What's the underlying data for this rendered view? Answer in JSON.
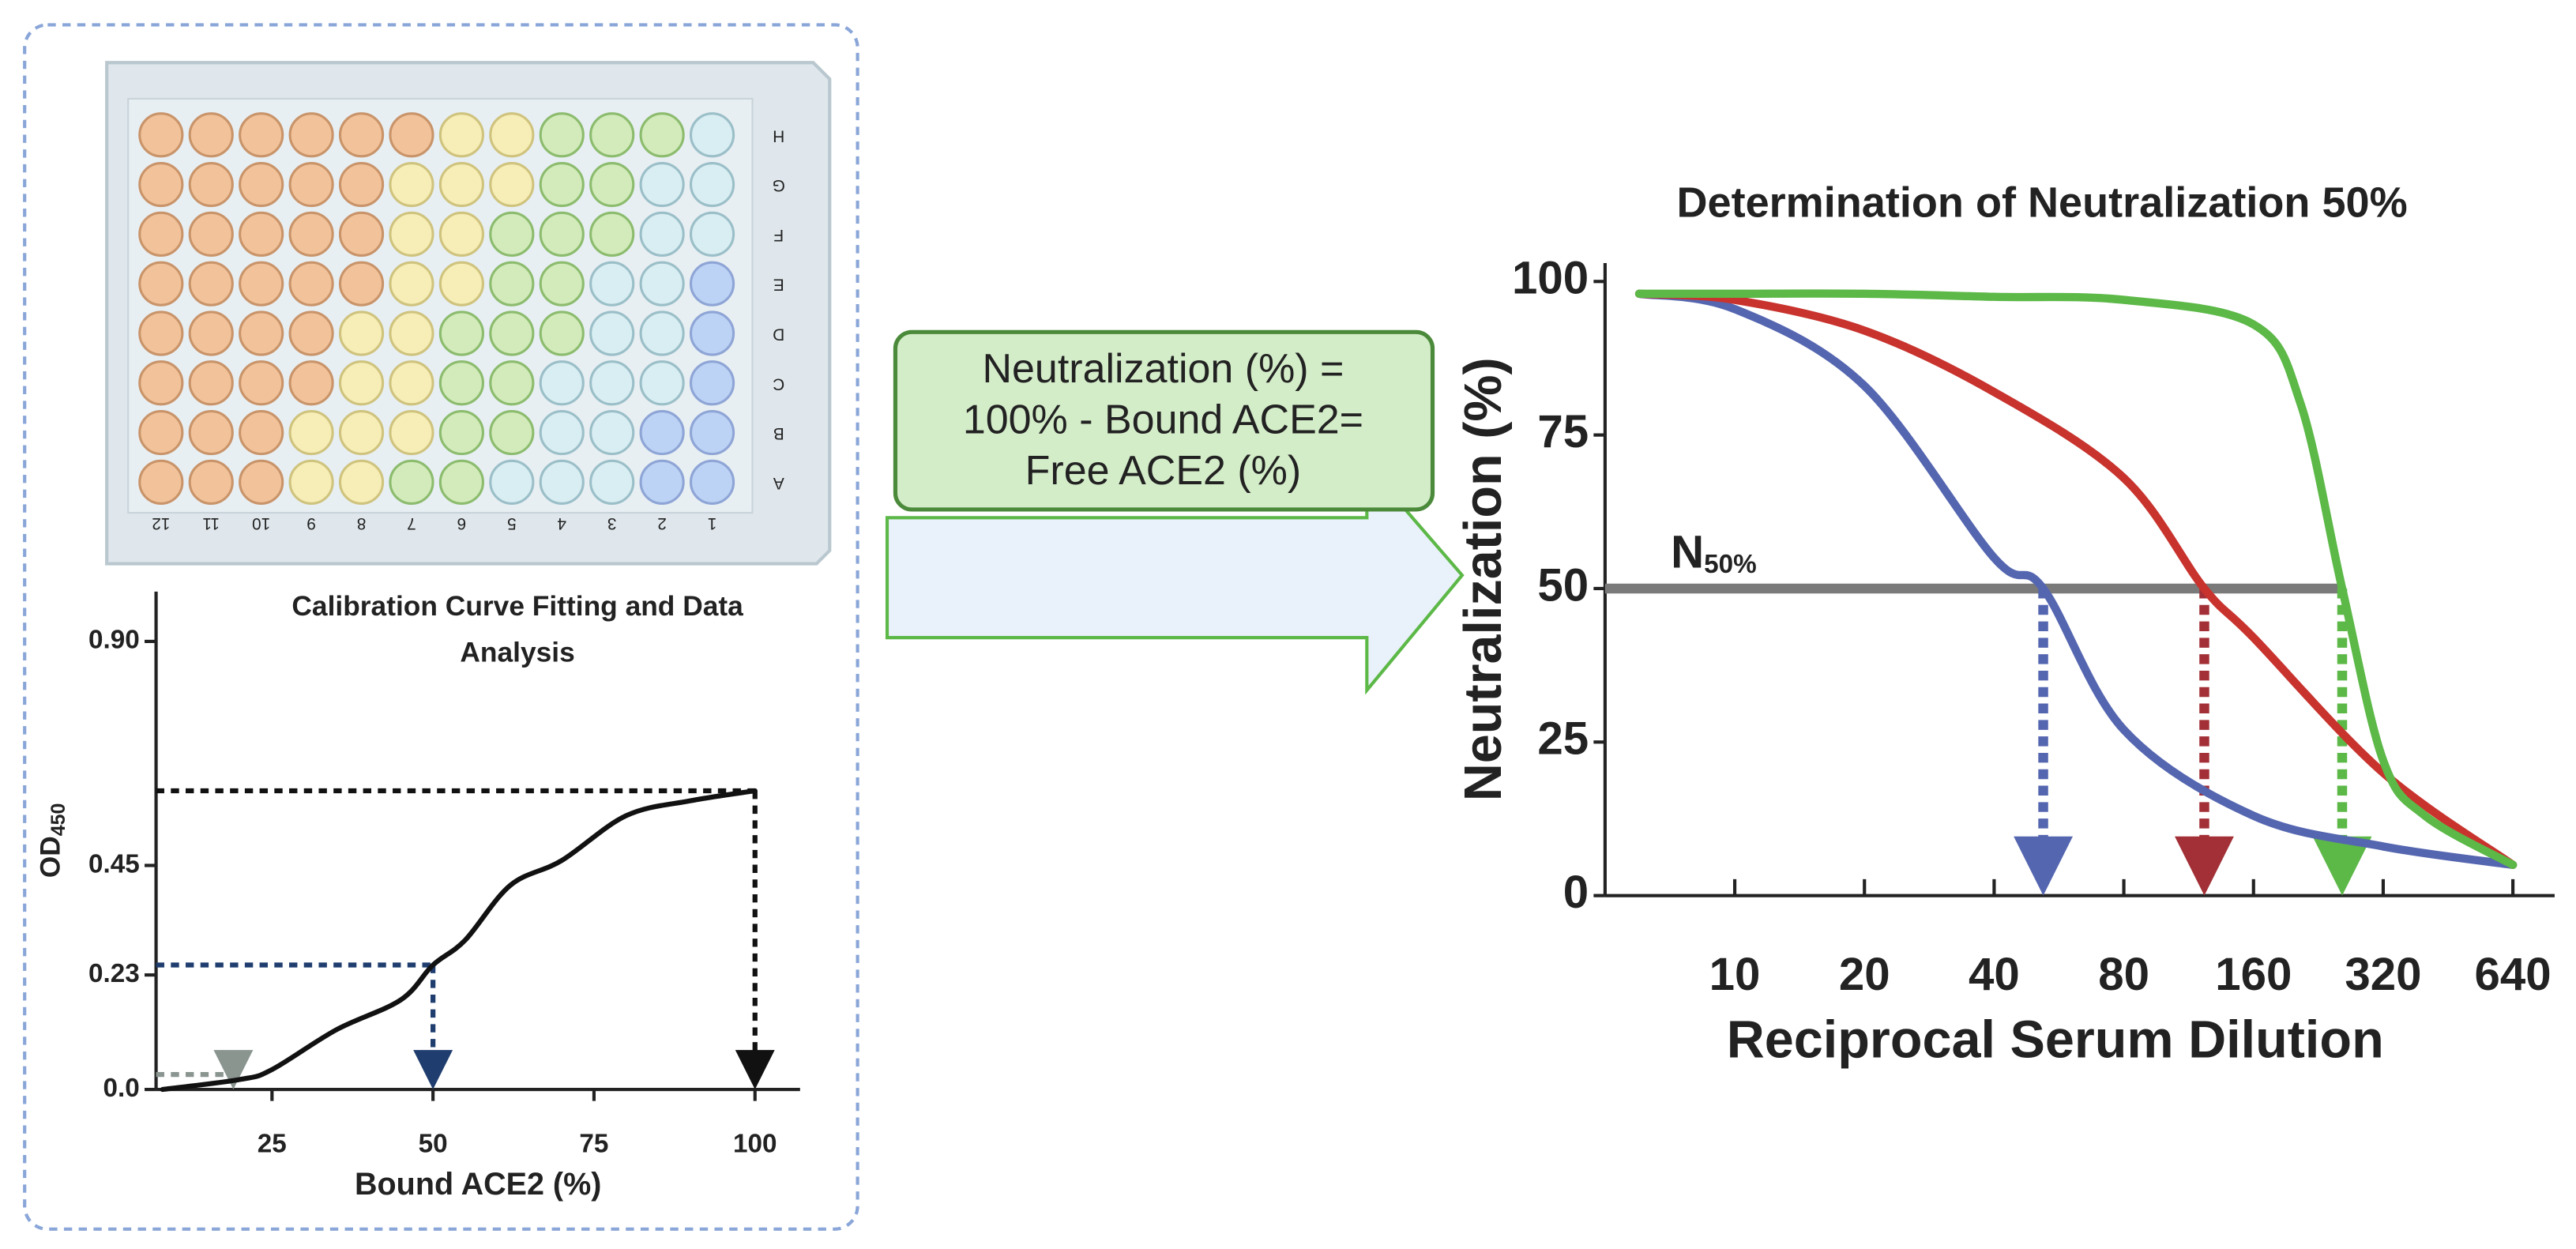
{
  "plate": {
    "rows": [
      "H",
      "G",
      "F",
      "E",
      "D",
      "C",
      "B",
      "A"
    ],
    "columns": [
      "12",
      "11",
      "10",
      "9",
      "8",
      "7",
      "6",
      "5",
      "4",
      "3",
      "2",
      "1"
    ]
  },
  "formula": [
    "Neutralization (%)   =",
    "100% - Bound ACE2=",
    "Free ACE2 (%)"
  ],
  "chart_data": [
    {
      "type": "line",
      "title": [
        "Calibration Curve Fitting and Data",
        "Analysis"
      ],
      "xlabel": "Bound ACE2 (%)",
      "ylabel": "OD",
      "ylabel_sub": "450",
      "x": [
        8,
        20,
        25,
        35,
        45,
        50,
        55,
        62,
        70,
        80,
        90,
        100
      ],
      "series": [
        {
          "color": "#111111",
          "values": [
            0.0,
            0.02,
            0.04,
            0.12,
            0.18,
            0.25,
            0.3,
            0.41,
            0.46,
            0.55,
            0.58,
            0.6
          ]
        }
      ],
      "markers": [
        {
          "x": 19,
          "y": 0.03,
          "color": "#8a9590"
        },
        {
          "x": 50,
          "y": 0.25,
          "color": "#1f3d6e"
        },
        {
          "x": 100,
          "y": 0.6,
          "color": "#111111"
        }
      ],
      "xlim": [
        7,
        107
      ],
      "ylim": [
        0,
        1
      ],
      "xticks": [
        25,
        50,
        75,
        100
      ],
      "yticks": [
        {
          "value": 0,
          "label": "0.0"
        },
        0.23,
        0.45,
        {
          "value": 0.9,
          "label": "0.90"
        }
      ]
    },
    {
      "type": "line",
      "title": "Determination of Neutralization 50%",
      "xlabel": "Reciprocal Serum Dilution",
      "ylabel": "Neutralization (%)",
      "x_log_base": 2,
      "series": [
        {
          "color": "#5566b0",
          "x": [
            6,
            10,
            20,
            40,
            52,
            80,
            160,
            320,
            640
          ],
          "values": [
            98,
            95.5,
            83,
            55,
            50,
            27,
            13,
            8,
            5
          ]
        },
        {
          "color": "#c8332e",
          "x": [
            6,
            10,
            20,
            40,
            80,
            123,
            160,
            320,
            640
          ],
          "values": [
            98,
            97,
            92,
            82,
            68,
            50,
            42,
            20,
            5
          ]
        },
        {
          "color": "#5cb847",
          "x": [
            6,
            10,
            20,
            40,
            80,
            160,
            206,
            257,
            320,
            400,
            640
          ],
          "values": [
            98,
            98,
            98,
            97.5,
            97,
            93,
            80,
            50,
            22,
            13,
            5
          ]
        }
      ],
      "markers": [
        {
          "x": 52,
          "y": 50,
          "color": "#5566b0"
        },
        {
          "x": 123,
          "y": 50,
          "color": "#a23036"
        },
        {
          "x": 257,
          "y": 50,
          "color": "#5cb847"
        }
      ],
      "reference_line": {
        "y": 50,
        "label": "N",
        "label_sub": "50%",
        "color": "#7a7a7a"
      },
      "xlim": [
        5,
        800
      ],
      "ylim": [
        0,
        103
      ],
      "xticks": [
        10,
        20,
        40,
        80,
        160,
        320,
        640
      ],
      "yticks": [
        0,
        25,
        50,
        75,
        100
      ]
    }
  ]
}
